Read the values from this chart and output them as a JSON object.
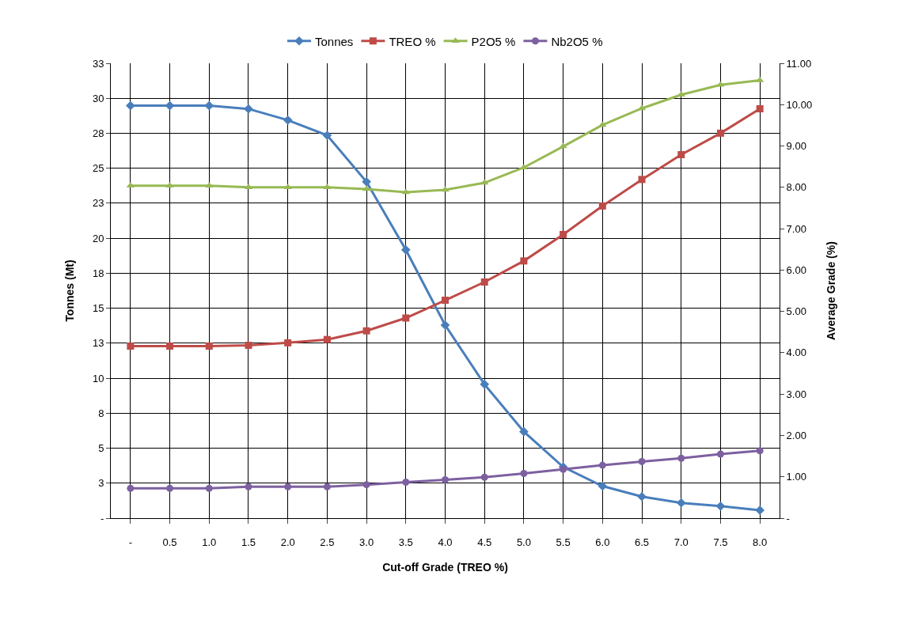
{
  "chart_data": {
    "type": "line",
    "xlabel": "Cut-off Grade (TREO %)",
    "ylabel": "Tonnes (Mt)",
    "y2label": "Average Grade (%)",
    "categories": [
      "-",
      "0.5",
      "1.0",
      "1.5",
      "2.0",
      "2.5",
      "3.0",
      "3.5",
      "4.0",
      "4.5",
      "5.0",
      "5.5",
      "6.0",
      "6.5",
      "7.0",
      "7.5",
      "8.0"
    ],
    "series": [
      {
        "name": "Tonnes",
        "color": "#4a7ebb",
        "marker": "diamond",
        "values": [
          29.47,
          29.47,
          29.47,
          29.24,
          28.44,
          27.35,
          24.03,
          19.17,
          13.79,
          9.56,
          6.18,
          3.66,
          2.29,
          1.54,
          1.09,
          0.86,
          0.57
        ]
      },
      {
        "name": "TREO %",
        "color": "#be4b48",
        "marker": "square",
        "axis": "y2",
        "values": [
          4.16,
          4.16,
          4.16,
          4.18,
          4.24,
          4.32,
          4.53,
          4.84,
          5.27,
          5.71,
          6.22,
          6.86,
          7.55,
          8.19,
          8.79,
          9.31,
          9.9
        ]
      },
      {
        "name": "P2O5 %",
        "color": "#98b954",
        "marker": "triangle",
        "axis": "y2",
        "values": [
          8.04,
          8.04,
          8.04,
          8.0,
          8.0,
          8.0,
          7.96,
          7.88,
          7.94,
          8.11,
          8.48,
          8.99,
          9.51,
          9.91,
          10.24,
          10.48,
          10.59
        ]
      },
      {
        "name": "Nb2O5 %",
        "color": "#7d60a0",
        "marker": "circle",
        "axis": "y2",
        "values": [
          0.72,
          0.72,
          0.72,
          0.76,
          0.76,
          0.76,
          0.81,
          0.87,
          0.93,
          0.99,
          1.08,
          1.18,
          1.28,
          1.37,
          1.45,
          1.55,
          1.63
        ]
      }
    ],
    "ylim": [
      0,
      32.5
    ],
    "yticks": [
      {
        "value": 0,
        "label": "-"
      },
      {
        "value": 2.5,
        "label": "3"
      },
      {
        "value": 5,
        "label": "5"
      },
      {
        "value": 7.5,
        "label": "8"
      },
      {
        "value": 10,
        "label": "10"
      },
      {
        "value": 12.5,
        "label": "13"
      },
      {
        "value": 15,
        "label": "15"
      },
      {
        "value": 17.5,
        "label": "18"
      },
      {
        "value": 20,
        "label": "20"
      },
      {
        "value": 22.5,
        "label": "23"
      },
      {
        "value": 25,
        "label": "25"
      },
      {
        "value": 27.5,
        "label": "28"
      },
      {
        "value": 30,
        "label": "30"
      },
      {
        "value": 32.5,
        "label": "33"
      }
    ],
    "y2lim": [
      0,
      11
    ],
    "y2ticks": [
      {
        "value": 0,
        "label": "-"
      },
      {
        "value": 1,
        "label": "1.00"
      },
      {
        "value": 2,
        "label": "2.00"
      },
      {
        "value": 3,
        "label": "3.00"
      },
      {
        "value": 4,
        "label": "4.00"
      },
      {
        "value": 5,
        "label": "5.00"
      },
      {
        "value": 6,
        "label": "6.00"
      },
      {
        "value": 7,
        "label": "7.00"
      },
      {
        "value": 8,
        "label": "8.00"
      },
      {
        "value": 9,
        "label": "9.00"
      },
      {
        "value": 10,
        "label": "10.00"
      },
      {
        "value": 11,
        "label": "11.00"
      }
    ],
    "grid": true,
    "legend": "top",
    "line_style": "solid"
  }
}
